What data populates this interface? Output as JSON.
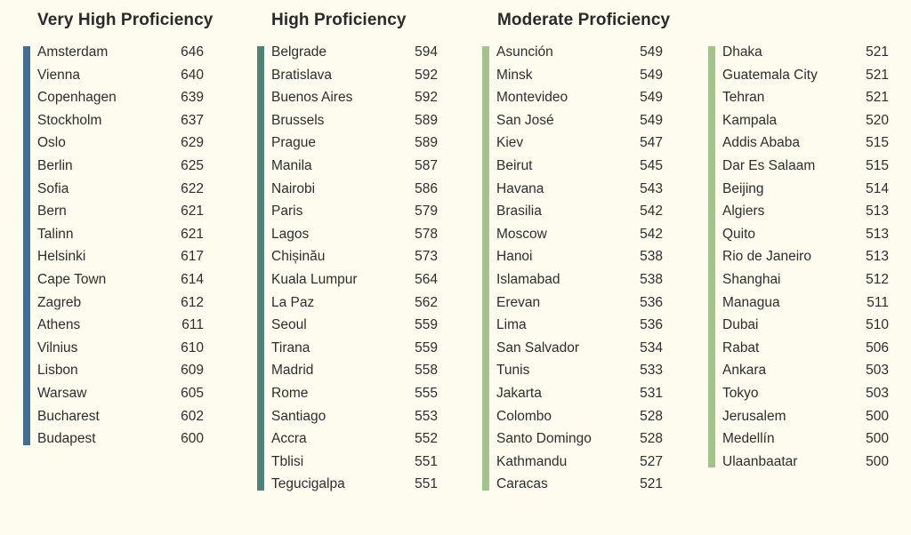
{
  "colors": {
    "very_high": "#3f6f94",
    "high": "#4f8378",
    "moderate": "#a3c28c",
    "background": "#fdfcee"
  },
  "headings": {
    "very_high": "Very High Proficiency",
    "high": "High Proficiency",
    "moderate": "Moderate Proficiency"
  },
  "columns": [
    {
      "tier": "very_high",
      "rows": [
        {
          "city": "Amsterdam",
          "score": "646"
        },
        {
          "city": "Vienna",
          "score": "640"
        },
        {
          "city": "Copenhagen",
          "score": "639"
        },
        {
          "city": "Stockholm",
          "score": "637"
        },
        {
          "city": "Oslo",
          "score": "629"
        },
        {
          "city": "Berlin",
          "score": "625"
        },
        {
          "city": "Sofia",
          "score": "622"
        },
        {
          "city": "Bern",
          "score": "621"
        },
        {
          "city": "Talinn",
          "score": "621"
        },
        {
          "city": "Helsinki",
          "score": "617"
        },
        {
          "city": "Cape Town",
          "score": "614"
        },
        {
          "city": "Zagreb",
          "score": "612"
        },
        {
          "city": "Athens",
          "score": "611"
        },
        {
          "city": "Vilnius",
          "score": "610"
        },
        {
          "city": "Lisbon",
          "score": "609"
        },
        {
          "city": "Warsaw",
          "score": "605"
        },
        {
          "city": "Bucharest",
          "score": "602"
        },
        {
          "city": "Budapest",
          "score": "600"
        }
      ]
    },
    {
      "tier": "high",
      "rows": [
        {
          "city": "Belgrade",
          "score": "594"
        },
        {
          "city": "Bratislava",
          "score": "592"
        },
        {
          "city": "Buenos Aires",
          "score": "592"
        },
        {
          "city": "Brussels",
          "score": "589"
        },
        {
          "city": "Prague",
          "score": "589"
        },
        {
          "city": "Manila",
          "score": "587"
        },
        {
          "city": "Nairobi",
          "score": "586"
        },
        {
          "city": "Paris",
          "score": "579"
        },
        {
          "city": "Lagos",
          "score": "578"
        },
        {
          "city": "Chișinău",
          "score": "573"
        },
        {
          "city": "Kuala Lumpur",
          "score": "564"
        },
        {
          "city": "La Paz",
          "score": "562"
        },
        {
          "city": "Seoul",
          "score": "559"
        },
        {
          "city": "Tirana",
          "score": "559"
        },
        {
          "city": "Madrid",
          "score": "558"
        },
        {
          "city": "Rome",
          "score": "555"
        },
        {
          "city": "Santiago",
          "score": "553"
        },
        {
          "city": "Accra",
          "score": "552"
        },
        {
          "city": "Tblisi",
          "score": "551"
        },
        {
          "city": "Tegucigalpa",
          "score": "551"
        }
      ]
    },
    {
      "tier": "moderate",
      "rows": [
        {
          "city": "Asunción",
          "score": "549"
        },
        {
          "city": "Minsk",
          "score": "549"
        },
        {
          "city": "Montevideo",
          "score": "549"
        },
        {
          "city": "San José",
          "score": "549"
        },
        {
          "city": "Kiev",
          "score": "547"
        },
        {
          "city": "Beirut",
          "score": "545"
        },
        {
          "city": "Havana",
          "score": "543"
        },
        {
          "city": "Brasilia",
          "score": "542"
        },
        {
          "city": "Moscow",
          "score": "542"
        },
        {
          "city": "Hanoi",
          "score": "538"
        },
        {
          "city": "Islamabad",
          "score": "538"
        },
        {
          "city": "Erevan",
          "score": "536"
        },
        {
          "city": "Lima",
          "score": "536"
        },
        {
          "city": "San Salvador",
          "score": "534"
        },
        {
          "city": "Tunis",
          "score": "533"
        },
        {
          "city": "Jakarta",
          "score": "531"
        },
        {
          "city": "Colombo",
          "score": "528"
        },
        {
          "city": "Santo Domingo",
          "score": "528"
        },
        {
          "city": "Kathmandu",
          "score": "527"
        },
        {
          "city": "Caracas",
          "score": "521"
        }
      ]
    },
    {
      "tier": "moderate",
      "rows": [
        {
          "city": "Dhaka",
          "score": "521"
        },
        {
          "city": "Guatemala City",
          "score": "521"
        },
        {
          "city": "Tehran",
          "score": "521"
        },
        {
          "city": "Kampala",
          "score": "520"
        },
        {
          "city": "Addis Ababa",
          "score": "515"
        },
        {
          "city": "Dar Es Salaam",
          "score": "515"
        },
        {
          "city": "Beijing",
          "score": "514"
        },
        {
          "city": "Algiers",
          "score": "513"
        },
        {
          "city": "Quito",
          "score": "513"
        },
        {
          "city": "Rio de Janeiro",
          "score": "513"
        },
        {
          "city": "Shanghai",
          "score": "512"
        },
        {
          "city": "Managua",
          "score": "511"
        },
        {
          "city": "Dubai",
          "score": "510"
        },
        {
          "city": "Rabat",
          "score": "506"
        },
        {
          "city": "Ankara",
          "score": "503"
        },
        {
          "city": "Tokyo",
          "score": "503"
        },
        {
          "city": "Jerusalem",
          "score": "500"
        },
        {
          "city": "Medellín",
          "score": "500"
        },
        {
          "city": "Ulaanbaatar",
          "score": "500"
        }
      ]
    }
  ]
}
